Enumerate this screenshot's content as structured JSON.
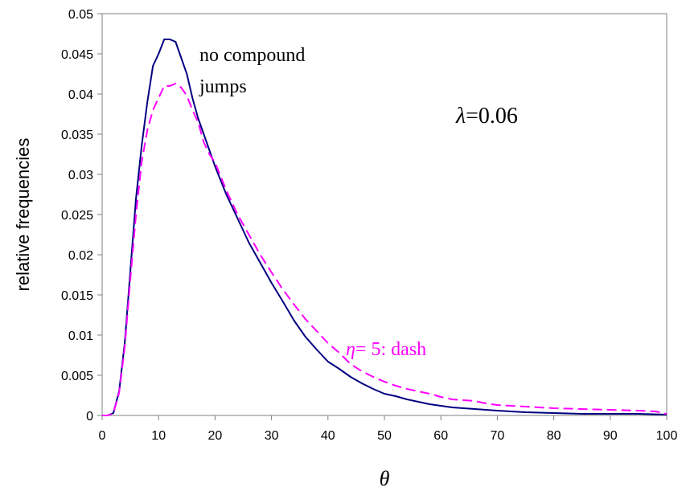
{
  "chart_data": {
    "type": "line",
    "title": "",
    "xlabel": "θ",
    "ylabel": "relative frequencies",
    "xlim": [
      0,
      100
    ],
    "ylim": [
      0,
      0.05
    ],
    "x_ticks": [
      "0",
      "10",
      "20",
      "30",
      "40",
      "50",
      "60",
      "70",
      "80",
      "90",
      "100"
    ],
    "y_ticks": [
      "0",
      "0.005",
      "0.01",
      "0.015",
      "0.02",
      "0.025",
      "0.03",
      "0.035",
      "0.04",
      "0.045",
      "0.05"
    ],
    "grid": false,
    "legend": "none",
    "annotations": {
      "lambda_symbol": "λ",
      "lambda_value": "=0.06",
      "solid_label_line1": "no compound",
      "solid_label_line2": "jumps",
      "dash_label_symbol": "η",
      "dash_label_text": "= 5: dash"
    },
    "series": [
      {
        "style": "solid",
        "color": "#000080",
        "points": [
          [
            0,
            0
          ],
          [
            1,
            0
          ],
          [
            2,
            0.0003
          ],
          [
            3,
            0.003
          ],
          [
            4,
            0.009
          ],
          [
            5,
            0.018
          ],
          [
            6,
            0.027
          ],
          [
            7,
            0.0335
          ],
          [
            8,
            0.039
          ],
          [
            9,
            0.0435
          ],
          [
            10,
            0.045
          ],
          [
            11,
            0.0468
          ],
          [
            12,
            0.0468
          ],
          [
            13,
            0.0465
          ],
          [
            14,
            0.0445
          ],
          [
            15,
            0.0425
          ],
          [
            16,
            0.0395
          ],
          [
            17,
            0.037
          ],
          [
            18,
            0.035
          ],
          [
            19,
            0.033
          ],
          [
            20,
            0.031
          ],
          [
            22,
            0.0275
          ],
          [
            24,
            0.0245
          ],
          [
            26,
            0.0215
          ],
          [
            28,
            0.019
          ],
          [
            30,
            0.0165
          ],
          [
            32,
            0.0142
          ],
          [
            34,
            0.0118
          ],
          [
            36,
            0.0098
          ],
          [
            38,
            0.0082
          ],
          [
            40,
            0.0067
          ],
          [
            42,
            0.0058
          ],
          [
            44,
            0.0048
          ],
          [
            46,
            0.004
          ],
          [
            48,
            0.0033
          ],
          [
            50,
            0.0027
          ],
          [
            52,
            0.0024
          ],
          [
            54,
            0.002
          ],
          [
            56,
            0.0017
          ],
          [
            58,
            0.0014
          ],
          [
            60,
            0.0012
          ],
          [
            62,
            0.001
          ],
          [
            64,
            0.0009
          ],
          [
            66,
            0.0008
          ],
          [
            68,
            0.0007
          ],
          [
            70,
            0.0006
          ],
          [
            75,
            0.0004
          ],
          [
            80,
            0.0003
          ],
          [
            85,
            0.0002
          ],
          [
            90,
            0.0002
          ],
          [
            95,
            0.0002
          ],
          [
            100,
            0.0001
          ]
        ]
      },
      {
        "style": "dash",
        "color": "#ff00ff",
        "points": [
          [
            0,
            0
          ],
          [
            1,
            0
          ],
          [
            2,
            0.0003
          ],
          [
            3,
            0.0028
          ],
          [
            4,
            0.0085
          ],
          [
            5,
            0.017
          ],
          [
            6,
            0.025
          ],
          [
            7,
            0.0315
          ],
          [
            8,
            0.0355
          ],
          [
            9,
            0.038
          ],
          [
            10,
            0.0395
          ],
          [
            11,
            0.041
          ],
          [
            12,
            0.041
          ],
          [
            13,
            0.0413
          ],
          [
            14,
            0.0408
          ],
          [
            15,
            0.0398
          ],
          [
            16,
            0.038
          ],
          [
            17,
            0.0365
          ],
          [
            18,
            0.034
          ],
          [
            19,
            0.0325
          ],
          [
            20,
            0.0315
          ],
          [
            22,
            0.028
          ],
          [
            24,
            0.025
          ],
          [
            26,
            0.0225
          ],
          [
            28,
            0.02
          ],
          [
            30,
            0.0178
          ],
          [
            32,
            0.0157
          ],
          [
            34,
            0.0138
          ],
          [
            36,
            0.012
          ],
          [
            38,
            0.0105
          ],
          [
            40,
            0.009
          ],
          [
            42,
            0.0078
          ],
          [
            44,
            0.0064
          ],
          [
            46,
            0.0055
          ],
          [
            48,
            0.0048
          ],
          [
            50,
            0.0042
          ],
          [
            52,
            0.0037
          ],
          [
            54,
            0.0033
          ],
          [
            56,
            0.003
          ],
          [
            58,
            0.0027
          ],
          [
            60,
            0.0023
          ],
          [
            62,
            0.002
          ],
          [
            64,
            0.0019
          ],
          [
            66,
            0.0018
          ],
          [
            68,
            0.0015
          ],
          [
            70,
            0.0013
          ],
          [
            75,
            0.0011
          ],
          [
            80,
            0.0009
          ],
          [
            85,
            0.0008
          ],
          [
            90,
            0.0007
          ],
          [
            95,
            0.0006
          ],
          [
            98,
            0.0005
          ],
          [
            100,
            0.0002
          ]
        ]
      }
    ]
  }
}
